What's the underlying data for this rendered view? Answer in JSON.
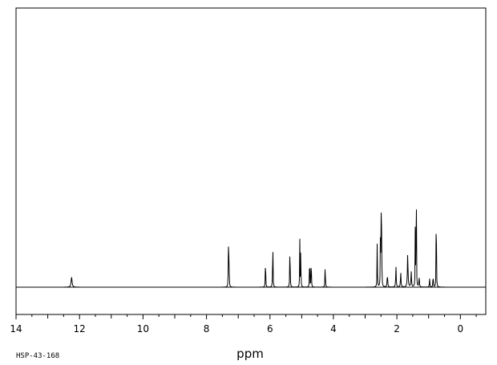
{
  "chart_data": {
    "type": "line",
    "title": "",
    "xlabel": "ppm",
    "ylabel": "",
    "xlim": [
      14.0,
      -0.8
    ],
    "ylim": [
      0,
      1
    ],
    "x_ticks": [
      14,
      12,
      10,
      8,
      6,
      4,
      2,
      0
    ],
    "x_tick_labels": [
      "14",
      "12",
      "10",
      "8",
      "6",
      "4",
      "2",
      "0"
    ],
    "grid": false,
    "legend": "none",
    "series": [
      {
        "peaks": [
          {
            "ppm": 12.25,
            "height": 0.04,
            "width": 0.035
          },
          {
            "ppm": 7.31,
            "height": 0.19,
            "width": 0.01
          },
          {
            "ppm": 7.29,
            "height": 0.185,
            "width": 0.01
          },
          {
            "ppm": 6.14,
            "height": 0.135,
            "width": 0.012
          },
          {
            "ppm": 5.91,
            "height": 0.215,
            "width": 0.012
          },
          {
            "ppm": 5.37,
            "height": 0.205,
            "width": 0.012
          },
          {
            "ppm": 5.06,
            "height": 0.185,
            "width": 0.01
          },
          {
            "ppm": 5.03,
            "height": 0.215,
            "width": 0.01
          },
          {
            "ppm": 4.75,
            "height": 0.18,
            "width": 0.01
          },
          {
            "ppm": 4.7,
            "height": 0.17,
            "width": 0.01
          },
          {
            "ppm": 4.26,
            "height": 0.09,
            "width": 0.014
          },
          {
            "ppm": 2.62,
            "height": 0.19,
            "width": 0.012
          },
          {
            "ppm": 2.52,
            "height": 0.18,
            "width": 0.012
          },
          {
            "ppm": 2.5,
            "height": 0.6,
            "width": 0.007
          },
          {
            "ppm": 2.48,
            "height": 0.29,
            "width": 0.01
          },
          {
            "ppm": 2.3,
            "height": 0.05,
            "width": 0.02
          },
          {
            "ppm": 2.03,
            "height": 0.08,
            "width": 0.018
          },
          {
            "ppm": 1.88,
            "height": 0.06,
            "width": 0.018
          },
          {
            "ppm": 1.66,
            "height": 0.13,
            "width": 0.022
          },
          {
            "ppm": 1.55,
            "height": 0.06,
            "width": 0.02
          },
          {
            "ppm": 1.42,
            "height": 0.28,
            "width": 0.01
          },
          {
            "ppm": 1.39,
            "height": 0.99,
            "width": 0.007
          },
          {
            "ppm": 1.3,
            "height": 0.04,
            "width": 0.018
          },
          {
            "ppm": 0.97,
            "height": 0.035,
            "width": 0.015
          },
          {
            "ppm": 0.86,
            "height": 0.06,
            "width": 0.012
          },
          {
            "ppm": 0.76,
            "height": 0.79,
            "width": 0.007
          }
        ]
      }
    ]
  },
  "footer": {
    "sample_id": "HSP-43-168"
  }
}
